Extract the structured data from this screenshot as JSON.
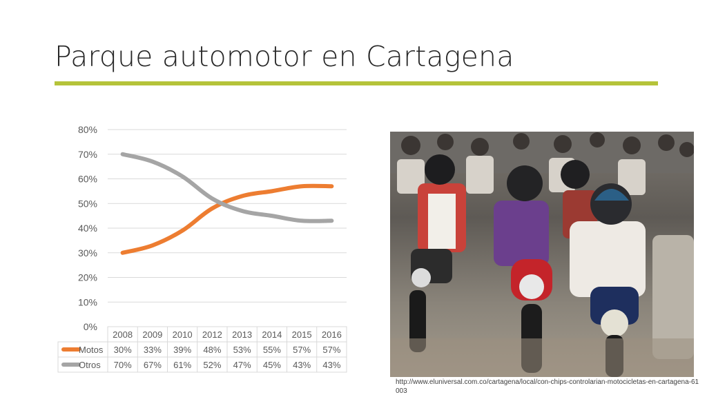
{
  "slide": {
    "title": "Parque automotor en Cartagena",
    "caption": "http://www.eluniversal.com.co/cartagena/local/con-chips-controlarian-motocicletas-en-cartagena-61003"
  },
  "colors": {
    "accent": "#b5c33a",
    "motos": "#ed7d31",
    "otros": "#a5a5a5",
    "text": "#595959",
    "grid": "#d9d9d9"
  },
  "chart_data": {
    "type": "line",
    "categories": [
      "2008",
      "2009",
      "2010",
      "2012",
      "2013",
      "2014",
      "2015",
      "2016"
    ],
    "series": [
      {
        "name": "Motos",
        "values": [
          30,
          33,
          39,
          48,
          53,
          55,
          57,
          57
        ],
        "labels": [
          "30%",
          "33%",
          "39%",
          "48%",
          "53%",
          "55%",
          "57%",
          "57%"
        ],
        "color": "#ed7d31"
      },
      {
        "name": "Otros",
        "values": [
          70,
          67,
          61,
          52,
          47,
          45,
          43,
          43
        ],
        "labels": [
          "70%",
          "67%",
          "61%",
          "52%",
          "47%",
          "45%",
          "43%",
          "43%"
        ],
        "color": "#a5a5a5"
      }
    ],
    "ylim": [
      0,
      80
    ],
    "yticks": [
      0,
      10,
      20,
      30,
      40,
      50,
      60,
      70,
      80
    ],
    "ytick_labels": [
      "0%",
      "10%",
      "20%",
      "30%",
      "40%",
      "50%",
      "60%",
      "70%",
      "80%"
    ],
    "grid": true,
    "legend": "data-table"
  },
  "photo": {
    "subject": "crowd of motorcyclists"
  }
}
